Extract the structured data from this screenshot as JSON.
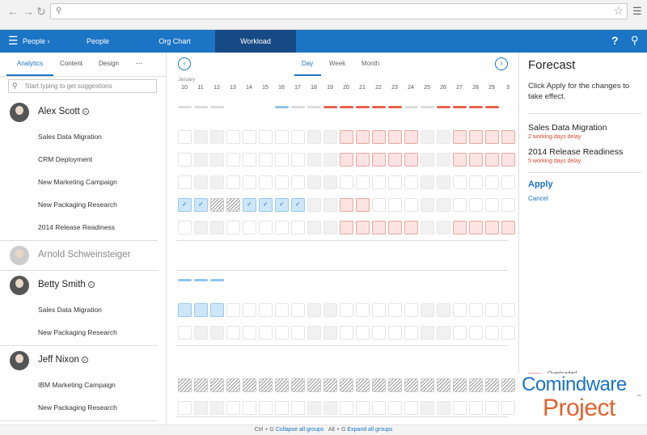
{
  "browser": {
    "back_icon": "arrow-left",
    "forward_icon": "arrow-right",
    "address": ""
  },
  "nav": {
    "section": "People",
    "items": [
      "People",
      "Org Chart",
      "Workload"
    ],
    "active": "Workload"
  },
  "left": {
    "tabs": [
      "Analytics",
      "Content",
      "Design"
    ],
    "more": "...",
    "search_placeholder": "Start typing to get suggestions",
    "people": [
      {
        "name": "Alex Scott",
        "dim": false,
        "expandable": true,
        "tasks": [
          "Sales Data Migration",
          "CRM Deployment",
          "New Marketing Campaign",
          "New Packaging Research",
          "2014 Release Readiness"
        ]
      },
      {
        "name": "Arnold Schweinsteiger",
        "dim": true,
        "expandable": false,
        "tasks": []
      },
      {
        "name": "Betty Smith",
        "dim": false,
        "expandable": true,
        "tasks": [
          "Sales Data Migration",
          "New Packaging Research"
        ]
      },
      {
        "name": "Jeff Nixon",
        "dim": false,
        "expandable": true,
        "tasks": [
          "IBM Marketing Campaign",
          "New Packaging Research"
        ]
      }
    ]
  },
  "timeline": {
    "views": [
      "Day",
      "Week",
      "Month"
    ],
    "active_view": "Day",
    "month": "January",
    "days": [
      "10",
      "11",
      "12",
      "13",
      "14",
      "15",
      "16",
      "17",
      "18",
      "19",
      "20",
      "21",
      "22",
      "23",
      "24",
      "25",
      "26",
      "27",
      "28",
      "29",
      "3"
    ],
    "weekends": [
      1,
      2,
      8,
      9,
      15,
      16
    ],
    "grid": [
      {
        "bars": "ggg...bggrrrrrggrrrr",
        "cells": "..........rrrrr..rrrr"
      },
      {
        "cells": "..........rrrrr..rrrr"
      },
      {
        "cells": "....................."
      },
      {
        "cells": "kkhhkkkk..rr........."
      },
      {
        "cells": "..........rrrrr..rrrr"
      },
      {
        "bars": "bbb"
      },
      {
        "cells": "BBB.................."
      },
      {
        "cells": "....................."
      },
      {
        "cells": "hhhhhhhhhhhhhhhhhhhhh"
      },
      {
        "cells": "....................."
      }
    ]
  },
  "forecast": {
    "title": "Forecast",
    "description": "Click Apply for the changes to take effect.",
    "projects": [
      {
        "name": "Sales Data Migration",
        "delay": "2 working days delay"
      },
      {
        "name": "2014 Release Readiness",
        "delay": "5 working days delay"
      }
    ],
    "apply": "Apply",
    "cancel": "Cancel",
    "legend": "Overloaded"
  },
  "logo": {
    "line1": "Comindware",
    "line2": "Project",
    "tm": "™"
  },
  "footer": {
    "k1": "Ctrl + G",
    "a1": "Collapse all groups",
    "k2": "Alt + G",
    "a2": "Expand all groups"
  }
}
